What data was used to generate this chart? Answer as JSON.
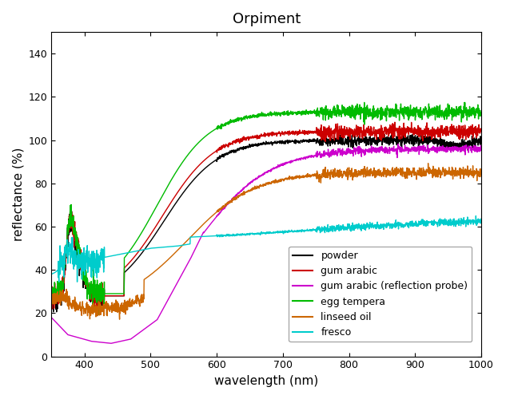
{
  "title": "Orpiment",
  "xlabel": "wavelength (nm)",
  "ylabel": "reflectance (%)",
  "xlim": [
    350,
    1000
  ],
  "ylim": [
    0,
    150
  ],
  "yticks": [
    0,
    20,
    40,
    60,
    80,
    100,
    120,
    140
  ],
  "xticks": [
    400,
    500,
    600,
    700,
    800,
    900,
    1000
  ],
  "series": [
    {
      "label": "powder",
      "color": "#000000",
      "lw": 1.0
    },
    {
      "label": "gum arabic",
      "color": "#cc0000",
      "lw": 1.0
    },
    {
      "label": "gum arabic (reflection probe)",
      "color": "#cc00cc",
      "lw": 1.0
    },
    {
      "label": "egg tempera",
      "color": "#00bb00",
      "lw": 1.0
    },
    {
      "label": "linseed oil",
      "color": "#cc6600",
      "lw": 1.0
    },
    {
      "label": "fresco",
      "color": "#00cccc",
      "lw": 1.0
    }
  ],
  "legend_fontsize": 9,
  "title_fontsize": 13,
  "axis_fontsize": 11,
  "background_color": "#ffffff"
}
